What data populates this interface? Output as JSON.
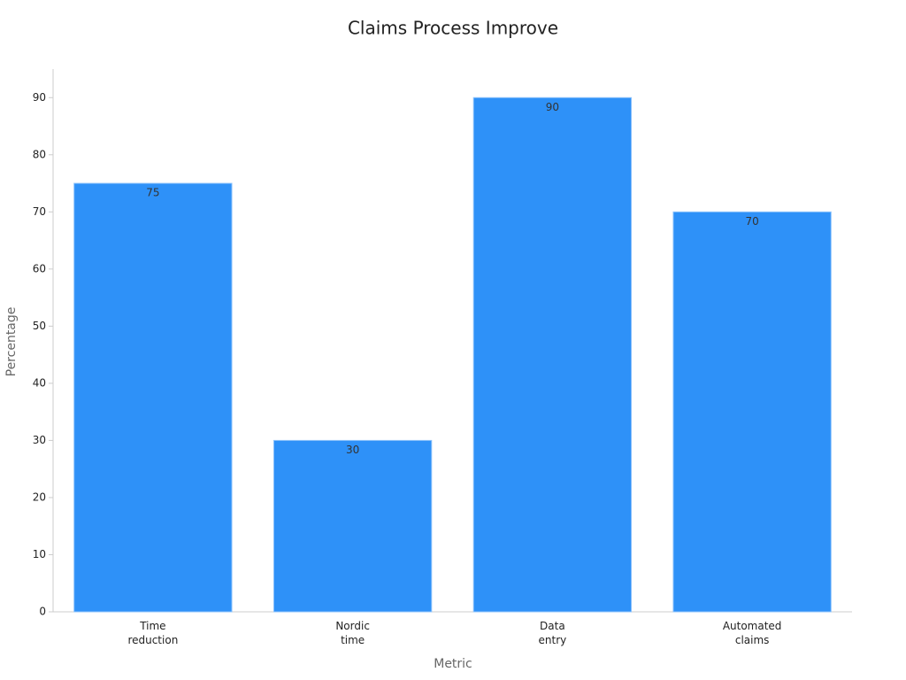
{
  "chart_data": {
    "type": "bar",
    "title": "Claims Process Improve",
    "x_label": "Metric",
    "y_label": "Percentage",
    "categories": [
      "Time\nreduction",
      "Nordic\ntime",
      "Data\nentry",
      "Automated\nclaims"
    ],
    "values": [
      75,
      30,
      90,
      70
    ],
    "color": "#2e91f8",
    "ylim": [
      0,
      95
    ],
    "yticks": [
      0,
      10,
      20,
      30,
      40,
      50,
      60,
      70,
      80,
      90
    ],
    "grid": false
  }
}
